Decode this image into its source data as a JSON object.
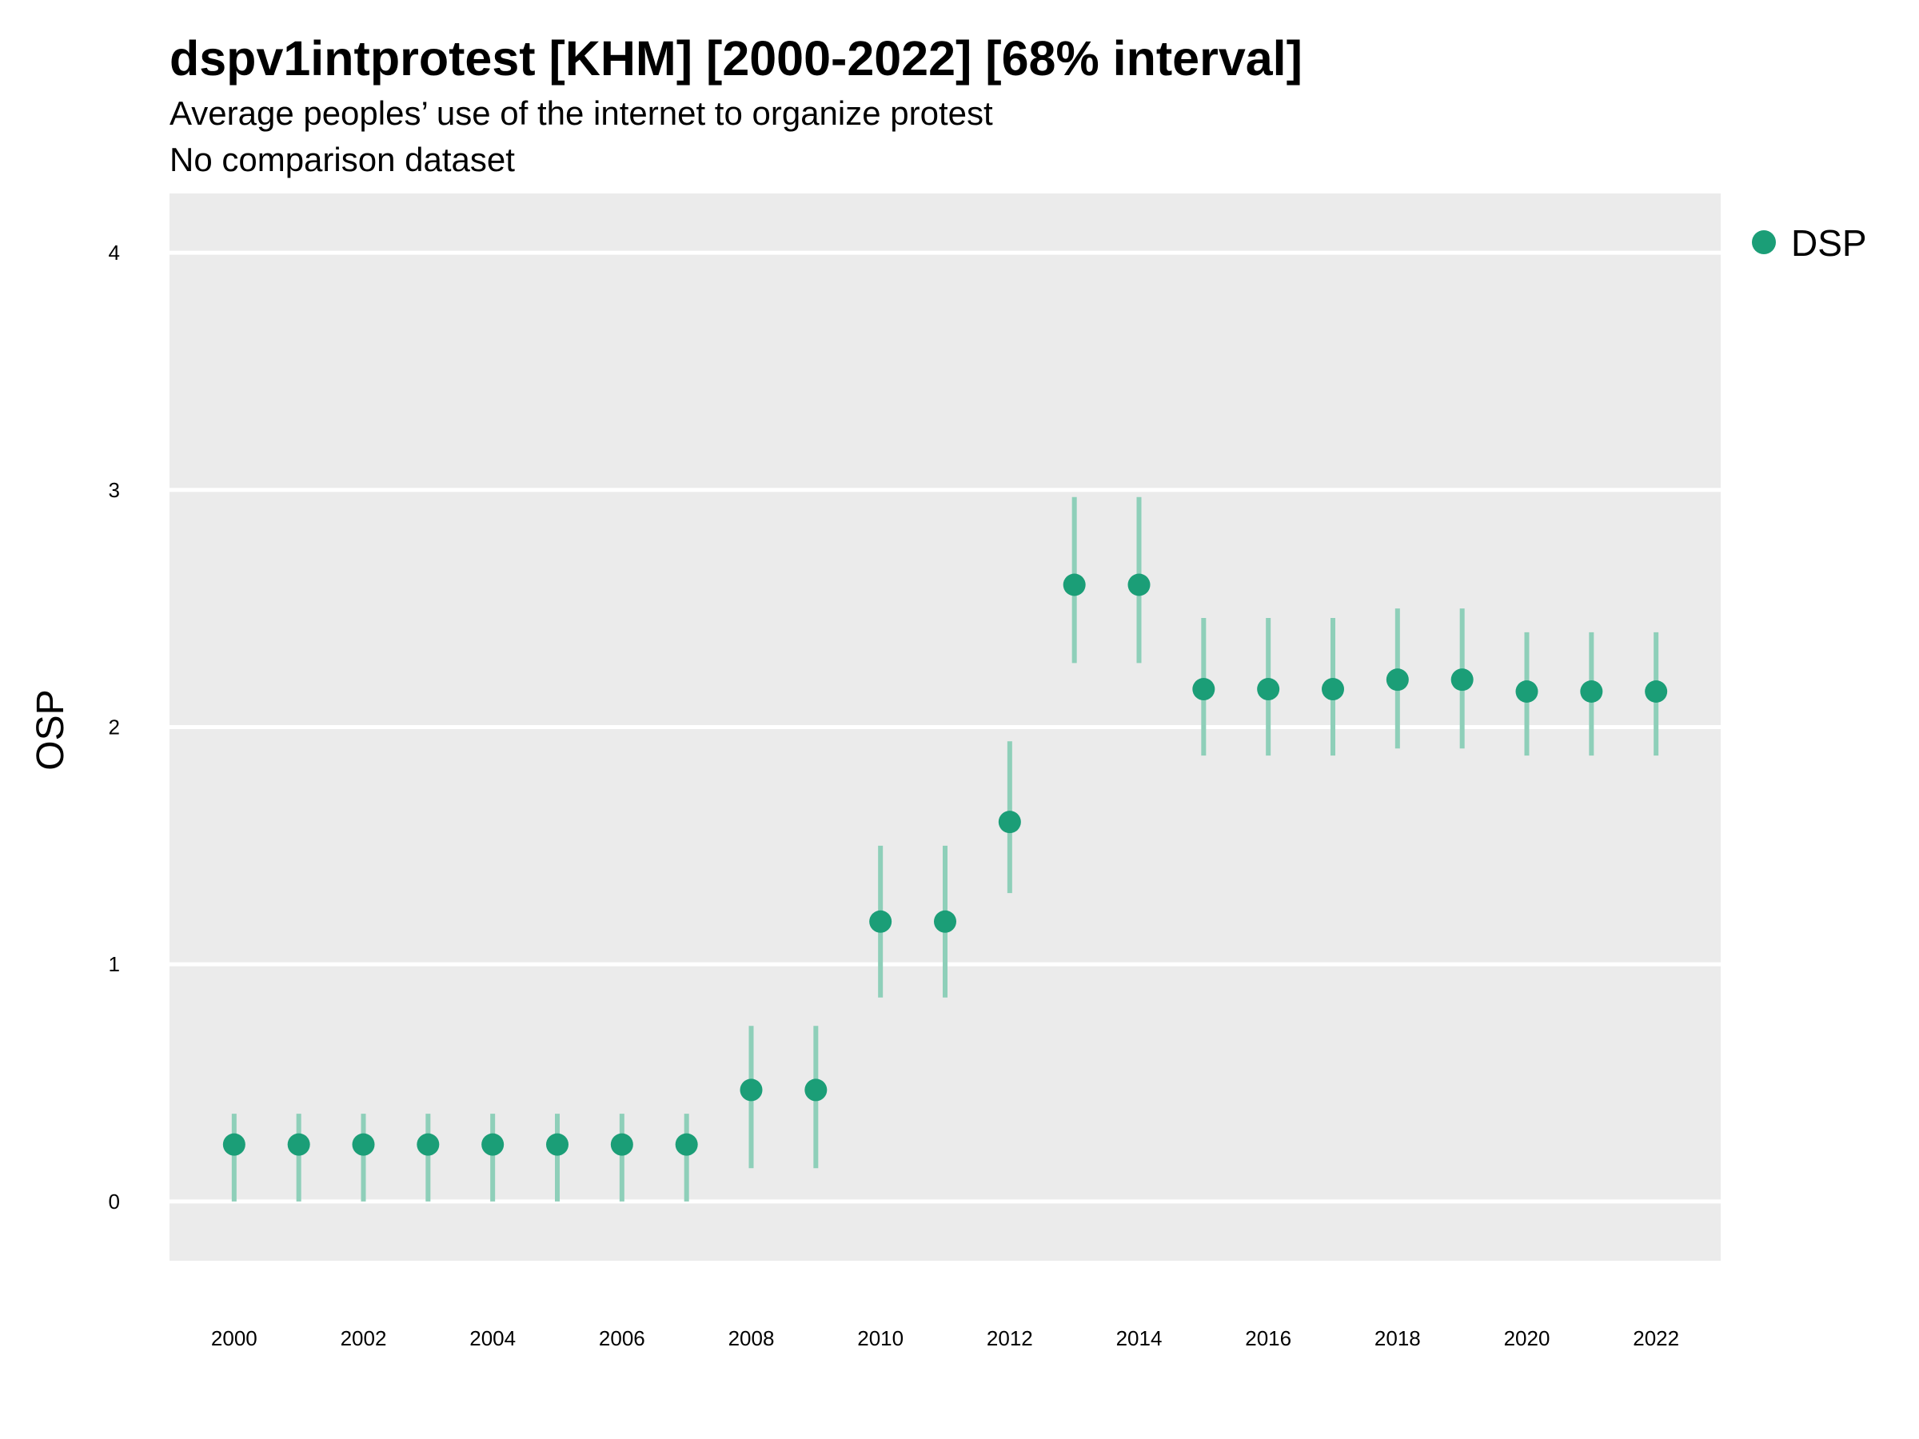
{
  "chart_data": {
    "type": "scatter",
    "title": "dspv1intprotest [KHM] [2000-2022] [68% interval]",
    "subtitle": "Average peoples’ use of the internet to organize protest",
    "subtitle2": "No comparison dataset",
    "xlabel": "",
    "ylabel": "OSP",
    "xlim": [
      1999,
      2023
    ],
    "ylim": [
      -0.25,
      4.25
    ],
    "x_ticks": [
      2000,
      2002,
      2004,
      2006,
      2008,
      2010,
      2012,
      2014,
      2016,
      2018,
      2020,
      2022
    ],
    "y_ticks": [
      0,
      1,
      2,
      3,
      4
    ],
    "grid": true,
    "legend_position": "right",
    "series": [
      {
        "name": "DSP",
        "color": "#1b9e77",
        "x": [
          2000,
          2001,
          2002,
          2003,
          2004,
          2005,
          2006,
          2007,
          2008,
          2009,
          2010,
          2011,
          2012,
          2013,
          2014,
          2015,
          2016,
          2017,
          2018,
          2019,
          2020,
          2021,
          2022
        ],
        "y": [
          0.24,
          0.24,
          0.24,
          0.24,
          0.24,
          0.24,
          0.24,
          0.24,
          0.47,
          0.47,
          1.18,
          1.18,
          1.6,
          2.6,
          2.6,
          2.16,
          2.16,
          2.16,
          2.2,
          2.2,
          2.15,
          2.15,
          2.15
        ],
        "lower": [
          0.0,
          0.0,
          0.0,
          0.0,
          0.0,
          0.0,
          0.0,
          0.0,
          0.14,
          0.14,
          0.86,
          0.86,
          1.3,
          2.27,
          2.27,
          1.88,
          1.88,
          1.88,
          1.91,
          1.91,
          1.88,
          1.88,
          1.88
        ],
        "upper": [
          0.37,
          0.37,
          0.37,
          0.37,
          0.37,
          0.37,
          0.37,
          0.37,
          0.74,
          0.74,
          1.5,
          1.5,
          1.94,
          2.97,
          2.97,
          2.46,
          2.46,
          2.46,
          2.5,
          2.5,
          2.4,
          2.4,
          2.4
        ]
      }
    ]
  },
  "colors": {
    "panel_background": "#ebebeb",
    "grid_line": "#ffffff",
    "point": "#1b9e77",
    "interval": "#8ecfb9"
  }
}
